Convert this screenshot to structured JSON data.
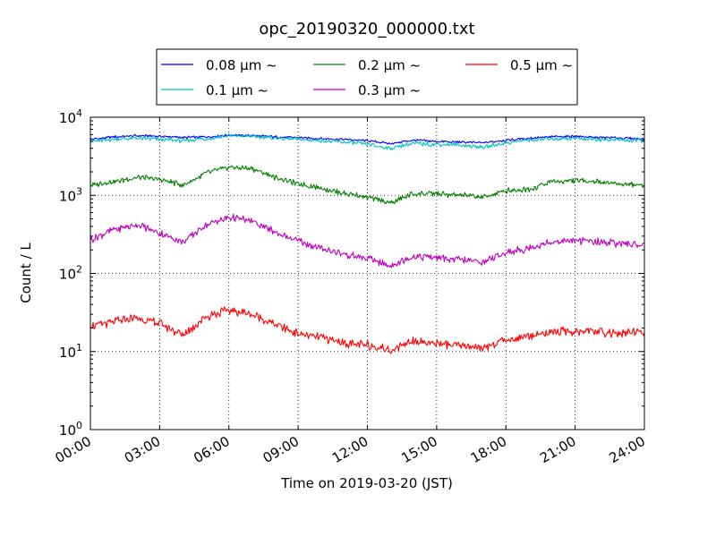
{
  "chart_data": {
    "type": "line",
    "title": "opc_20190320_000000.txt",
    "xlabel": "Time on 2019-03-20 (JST)",
    "ylabel": "Count / L",
    "y_scale": "log",
    "ylim": [
      1,
      10000
    ],
    "xlim": [
      "2019-03-20 00:00",
      "2019-03-21 00:00"
    ],
    "grid": true,
    "legend_placement": "top-center, above plot",
    "x_ticks": [
      {
        "time": "00:00",
        "label": "00:00"
      },
      {
        "time": "03:00",
        "label": "03:00"
      },
      {
        "time": "06:00",
        "label": "06:00"
      },
      {
        "time": "09:00",
        "label": "09:00"
      },
      {
        "time": "12:00",
        "label": "12:00"
      },
      {
        "time": "15:00",
        "label": "15:00"
      },
      {
        "time": "18:00",
        "label": "18:00"
      },
      {
        "time": "21:00",
        "label": "21:00"
      },
      {
        "time": "24:00",
        "label": "24:00"
      }
    ],
    "y_ticks": [
      {
        "value": 1,
        "base": "10",
        "exp": "0"
      },
      {
        "value": 10,
        "base": "10",
        "exp": "1"
      },
      {
        "value": 100,
        "base": "10",
        "exp": "2"
      },
      {
        "value": 1000,
        "base": "10",
        "exp": "3"
      },
      {
        "value": 10000,
        "base": "10",
        "exp": "4"
      }
    ],
    "x_times": [
      "00:00",
      "01:00",
      "02:00",
      "03:00",
      "04:00",
      "05:00",
      "06:00",
      "07:00",
      "08:00",
      "09:00",
      "10:00",
      "11:00",
      "12:00",
      "13:00",
      "14:00",
      "15:00",
      "16:00",
      "17:00",
      "18:00",
      "19:00",
      "20:00",
      "21:00",
      "22:00",
      "23:00",
      "24:00"
    ],
    "series": [
      {
        "name": "0.08 μm ~",
        "color": "#0000ff",
        "values": [
          5200,
          5600,
          5800,
          5700,
          5500,
          5600,
          5900,
          5800,
          5600,
          5500,
          5300,
          5200,
          5000,
          4600,
          5100,
          4900,
          4800,
          4700,
          5100,
          5400,
          5600,
          5700,
          5500,
          5400,
          5300
        ]
      },
      {
        "name": "0.1 μm ~",
        "color": "#00bfbf",
        "values": [
          4900,
          5200,
          5400,
          5200,
          5000,
          5300,
          5800,
          5700,
          5400,
          5200,
          5000,
          4800,
          4500,
          4000,
          4600,
          4500,
          4400,
          4100,
          4700,
          5100,
          5300,
          5400,
          5200,
          5100,
          5000
        ]
      },
      {
        "name": "0.2 μm ~",
        "color": "#008000",
        "values": [
          1350,
          1500,
          1700,
          1600,
          1350,
          1900,
          2300,
          2200,
          1700,
          1400,
          1250,
          1050,
          950,
          800,
          1050,
          1050,
          1000,
          950,
          1150,
          1200,
          1500,
          1550,
          1500,
          1400,
          1350
        ]
      },
      {
        "name": "0.3 μm ~",
        "color": "#bf00bf",
        "values": [
          270,
          360,
          420,
          330,
          250,
          420,
          520,
          470,
          340,
          260,
          210,
          175,
          155,
          125,
          165,
          160,
          150,
          140,
          185,
          210,
          255,
          260,
          255,
          240,
          230
        ]
      },
      {
        "name": "0.5 μm ~",
        "color": "#ff0000",
        "values": [
          21,
          24,
          27,
          23,
          16,
          28,
          34,
          30,
          22,
          17,
          15,
          13,
          12,
          10.5,
          14,
          12.5,
          12,
          11,
          14,
          16,
          18,
          18,
          18,
          17,
          18
        ]
      }
    ]
  }
}
